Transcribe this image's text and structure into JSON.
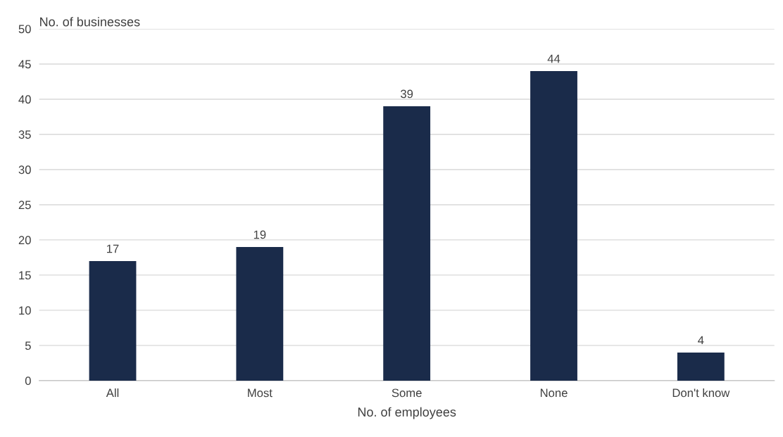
{
  "chart_data": {
    "type": "bar",
    "xlabel": "No. of employees",
    "ylabel": "No. of businesses",
    "categories": [
      "All",
      "Most",
      "Some",
      "None",
      "Don't know"
    ],
    "values": [
      17,
      19,
      39,
      44,
      4
    ],
    "color": "#1a2b4a",
    "ylim": [
      0,
      50
    ],
    "yticks": [
      0,
      5,
      10,
      15,
      20,
      25,
      30,
      35,
      40,
      45,
      50
    ],
    "grid": "y",
    "data_labels": true
  }
}
